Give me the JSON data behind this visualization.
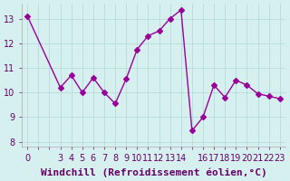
{
  "x": [
    0,
    3,
    4,
    5,
    6,
    7,
    8,
    9,
    10,
    11,
    12,
    13,
    14,
    15,
    16,
    17,
    18,
    19,
    20,
    21,
    22,
    23
  ],
  "y": [
    13.1,
    10.2,
    10.7,
    10.0,
    10.6,
    10.0,
    9.55,
    10.55,
    11.75,
    12.3,
    12.5,
    13.0,
    13.35,
    8.45,
    9.0,
    10.3,
    9.8,
    10.5,
    10.3,
    9.95,
    9.85,
    9.75
  ],
  "line_color": "#990099",
  "marker": "D",
  "marker_size": 3,
  "bg_color": "#d6f0f0",
  "grid_color": "#b0d8d8",
  "xlabel": "Windchill (Refroidissement éolien,°C)",
  "xlabel_color": "#660066",
  "xlabel_fontsize": 8,
  "yticks": [
    8,
    9,
    10,
    11,
    12,
    13
  ],
  "xticks": [
    0,
    1,
    2,
    3,
    4,
    5,
    6,
    7,
    8,
    9,
    10,
    11,
    12,
    13,
    14,
    15,
    16,
    17,
    18,
    19,
    20,
    21,
    22,
    23
  ],
  "xtick_labels": [
    "0",
    "",
    "",
    "3",
    "4",
    "5",
    "6",
    "7",
    "8",
    "9",
    "10",
    "11",
    "12",
    "13",
    "14",
    "",
    "16",
    "17",
    "18",
    "19",
    "20",
    "21",
    "22",
    "23"
  ],
  "xlim": [
    -0.5,
    23.5
  ],
  "ylim": [
    7.8,
    13.6
  ],
  "tick_fontsize": 7,
  "tick_color": "#660066"
}
